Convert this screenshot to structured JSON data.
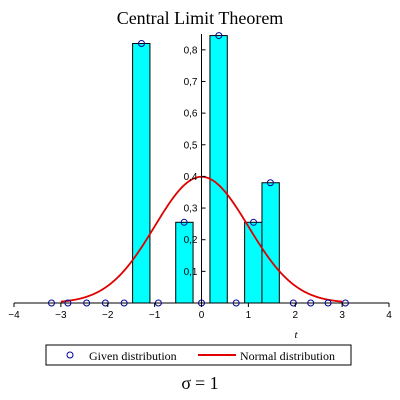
{
  "chart_data": {
    "type": "bar",
    "title": "Central Limit Theorem",
    "xlabel": "t",
    "ylabel": "",
    "xlim": [
      -4,
      4
    ],
    "ylim": [
      0,
      0.85
    ],
    "x_ticks": [
      -4,
      -3,
      -2,
      -1,
      0,
      1,
      2,
      3,
      4
    ],
    "x_tick_labels": [
      "−4",
      "−3",
      "−2",
      "−1",
      "0",
      "1",
      "2",
      "3",
      "4"
    ],
    "y_ticks": [
      0.1,
      0.2,
      0.3,
      0.4,
      0.5,
      0.6,
      0.7,
      0.8
    ],
    "y_tick_labels": [
      "0,1",
      "0,2",
      "0,3",
      "0,4",
      "0,5",
      "0,6",
      "0,7",
      "0,8"
    ],
    "grid": false,
    "legend_position": "bottom",
    "bar_color": "#00ffff",
    "point_color": "#000099",
    "curve_color": "#e00000",
    "bars": [
      {
        "x0": -1.47,
        "x1": -1.1,
        "value": 0.82
      },
      {
        "x0": -0.55,
        "x1": -0.18,
        "value": 0.255
      },
      {
        "x0": 0.18,
        "x1": 0.55,
        "value": 0.845
      },
      {
        "x0": 0.92,
        "x1": 1.29,
        "value": 0.255
      },
      {
        "x0": 1.29,
        "x1": 1.66,
        "value": 0.38
      }
    ],
    "series": [
      {
        "name": "Given distribution",
        "type": "scatter",
        "x": [
          -3.2,
          -2.85,
          -2.45,
          -2.05,
          -1.65,
          -1.28,
          -0.92,
          -0.37,
          0.0,
          0.37,
          0.74,
          1.11,
          1.47,
          1.96,
          2.33,
          2.7,
          3.07
        ],
        "y": [
          0,
          0,
          0,
          0,
          0,
          0.82,
          0,
          0.255,
          0,
          0.845,
          0,
          0.255,
          0.38,
          0,
          0,
          0,
          0
        ]
      },
      {
        "name": "Normal distribution",
        "type": "line",
        "function": "standard normal density",
        "x_range": [
          -3,
          3
        ]
      }
    ]
  },
  "caption": {
    "sigma_symbol": "σ",
    "equals": "= 1"
  }
}
